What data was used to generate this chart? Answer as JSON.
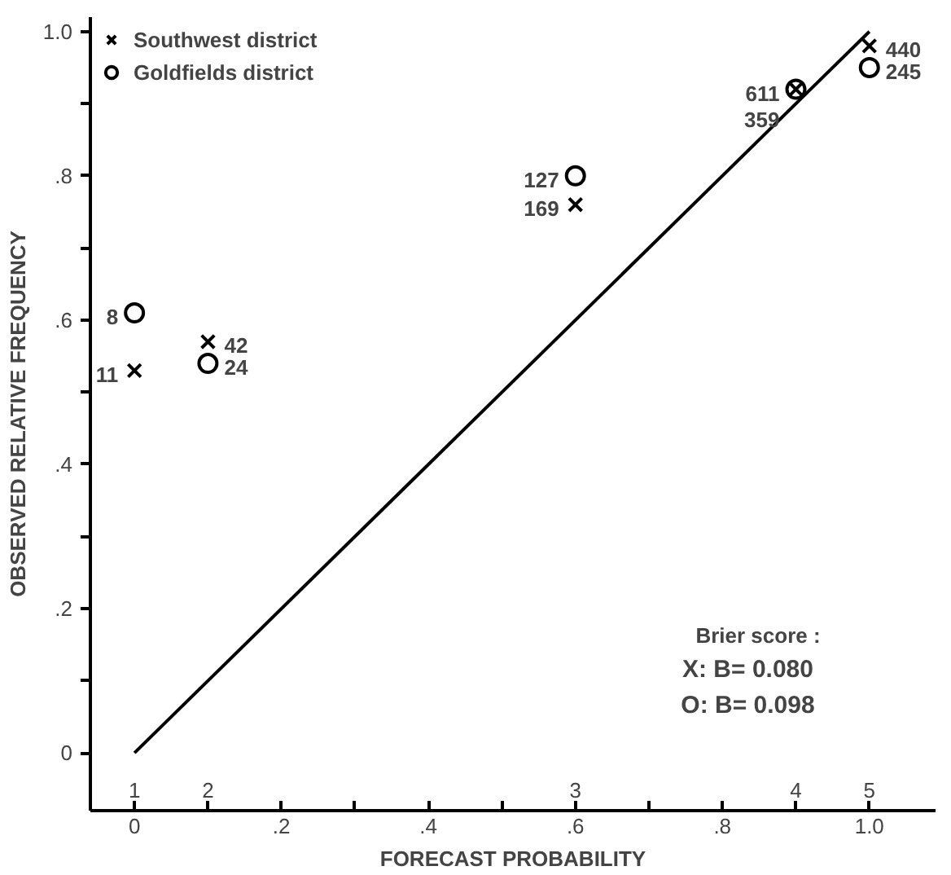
{
  "chart_data": {
    "type": "scatter",
    "xlabel": "FORECAST PROBABILITY",
    "ylabel": "OBSERVED RELATIVE FREQUENCY",
    "series": [
      {
        "name": "Southwest district",
        "color": "#000000",
        "marker": "cross",
        "x": [
          0,
          0.1,
          0.6,
          0.9,
          1.0
        ],
        "values": [
          0.53,
          0.57,
          0.76,
          0.92,
          0.98
        ]
      },
      {
        "name": "Goldfields district",
        "color": "#000000",
        "marker": "circle",
        "x": [
          0,
          0.1,
          0.6,
          0.9,
          1.0
        ],
        "values": [
          0.61,
          0.54,
          0.8,
          0.92,
          0.95
        ]
      },
      {
        "type": "line",
        "color": "#000000",
        "x": [
          0,
          1.0
        ],
        "values": [
          0,
          1.0
        ]
      }
    ],
    "xlim": [
      -0.06,
      1.09
    ],
    "ylim": [
      -0.08,
      1.02
    ],
    "xticks": [
      0,
      {
        "value": 0.1,
        "label": null
      },
      {
        "value": 0.2,
        "label": ".2"
      },
      {
        "value": 0.3,
        "label": null
      },
      {
        "value": 0.4,
        "label": ".4"
      },
      {
        "value": 0.5,
        "label": null
      },
      {
        "value": 0.6,
        "label": ".6"
      },
      {
        "value": 0.7,
        "label": null
      },
      {
        "value": 0.8,
        "label": ".8"
      },
      {
        "value": 0.9,
        "label": null
      },
      {
        "value": 1.0,
        "label": "1.0"
      }
    ],
    "yticks": [
      0,
      {
        "value": 0.1,
        "label": null
      },
      {
        "value": 0.2,
        "label": ".2"
      },
      {
        "value": 0.3,
        "label": null
      },
      {
        "value": 0.4,
        "label": ".4"
      },
      {
        "value": 0.5,
        "label": null
      },
      {
        "value": 0.6,
        "label": ".6"
      },
      {
        "value": 0.7,
        "label": null
      },
      {
        "value": 0.8,
        "label": ".8"
      },
      {
        "value": 0.9,
        "label": null
      },
      {
        "value": 1.0,
        "label": "1.0"
      }
    ],
    "annotations": [
      "1",
      "2",
      "3",
      "4",
      "5",
      {
        "text": "11",
        "x": 0,
        "y": 0.53
      },
      {
        "text": "42",
        "x": 0.1,
        "y": 0.57
      },
      {
        "text": "169",
        "x": 0.6,
        "y": 0.76
      },
      {
        "text": "611",
        "x": 0.9,
        "y": 0.92
      },
      {
        "text": "440",
        "x": 1.0,
        "y": 0.98
      },
      {
        "text": "8",
        "x": 0,
        "y": 0.61
      },
      {
        "text": "24",
        "x": 0.1,
        "y": 0.54
      },
      {
        "text": "127",
        "x": 0.6,
        "y": 0.8
      },
      {
        "text": "359",
        "x": 0.9,
        "y": 0.92
      },
      {
        "text": "245",
        "x": 1.0,
        "y": 0.95
      },
      "Brier score :",
      "X:    B= 0.080",
      "O:    B= 0.098"
    ],
    "legend": "top left",
    "grid": false
  }
}
